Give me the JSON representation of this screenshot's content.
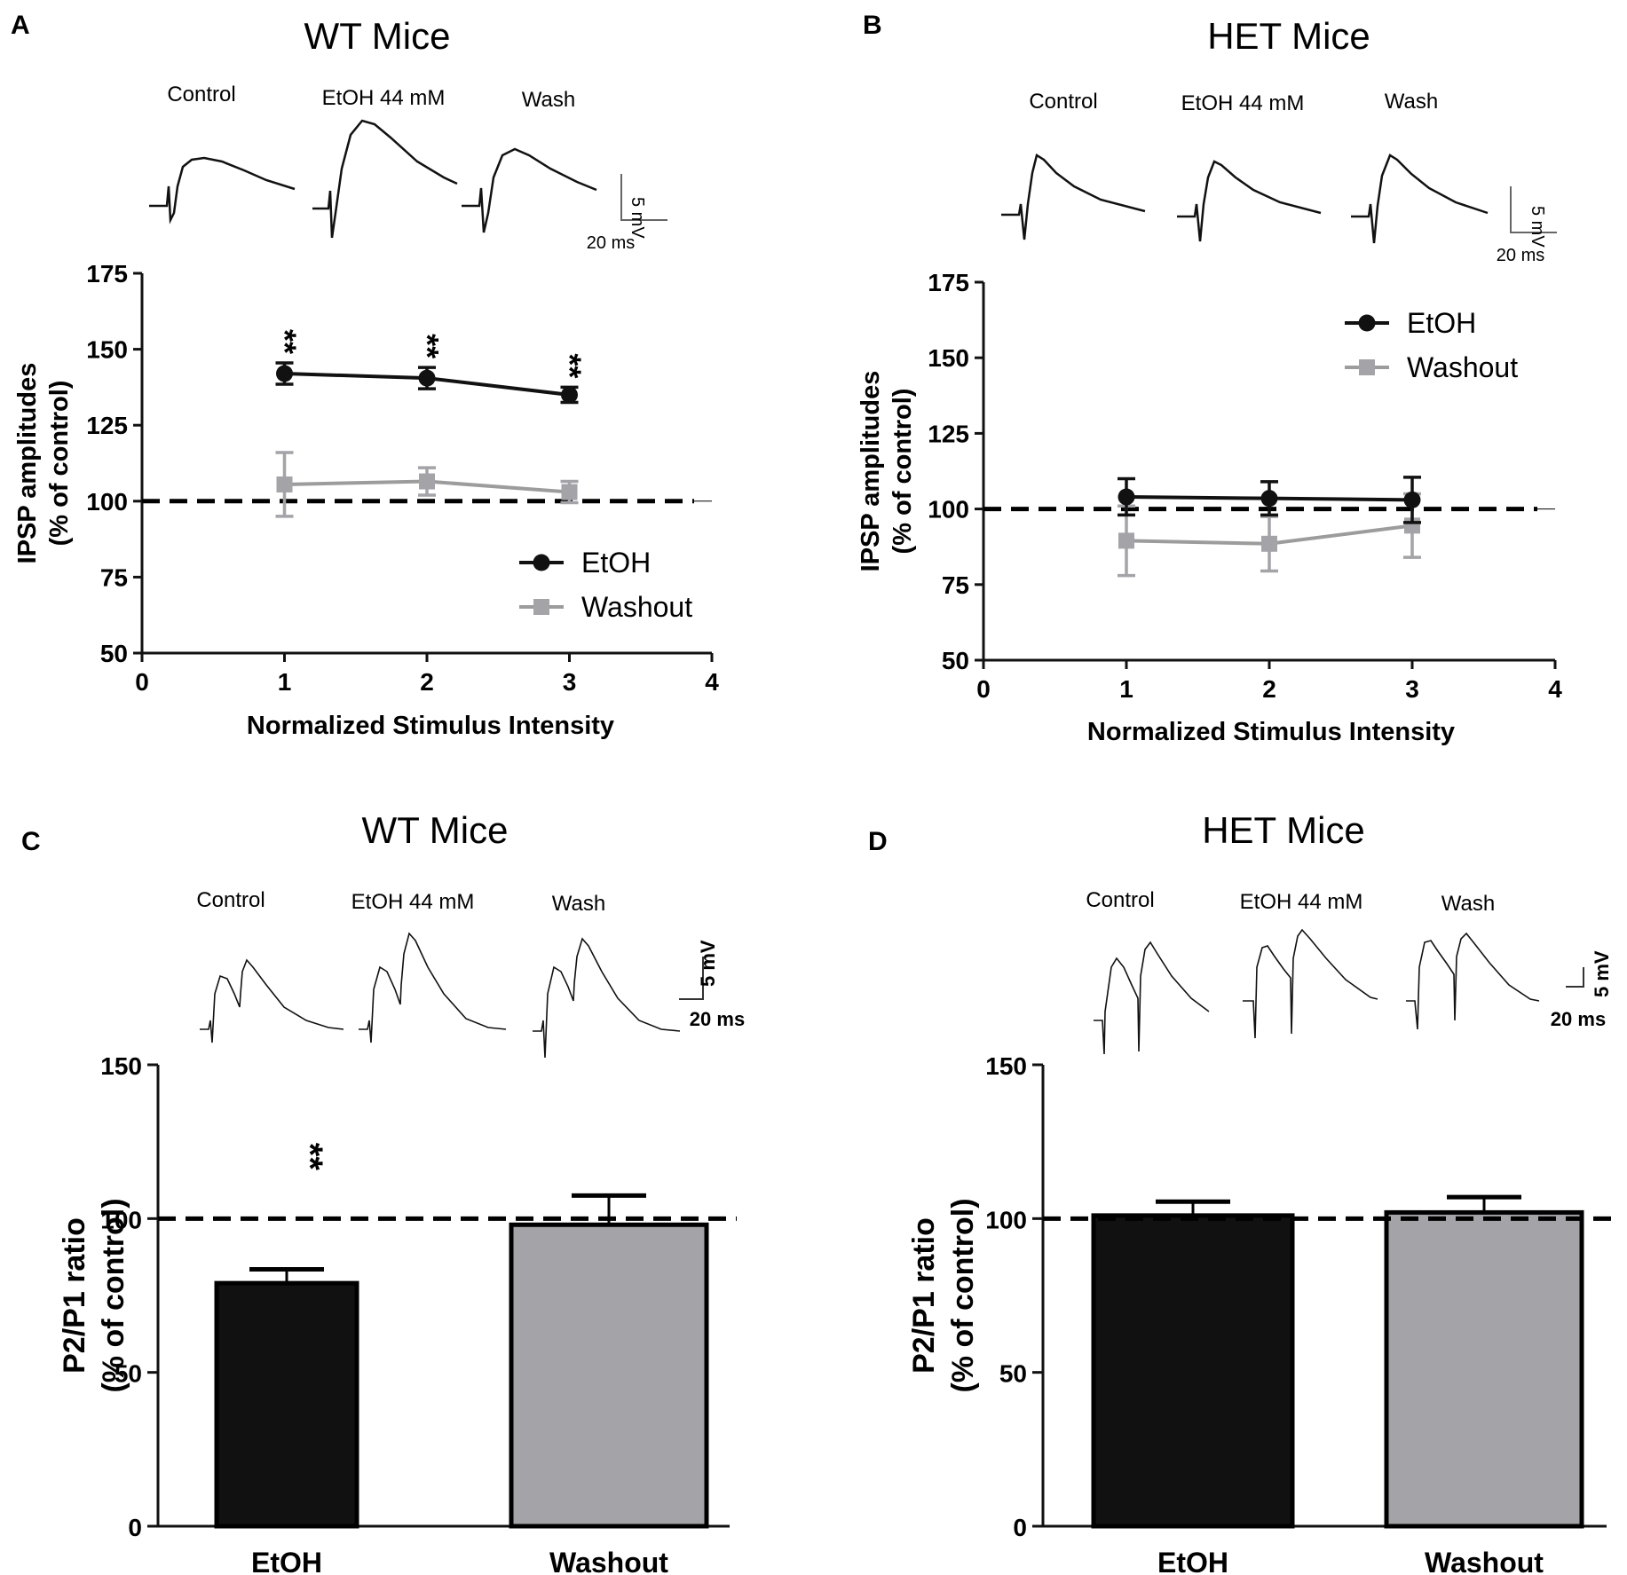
{
  "colors": {
    "etoh": "#111111",
    "washout": "#a3a3a8",
    "washout_line": "#9c9c9c",
    "axis": "#111111"
  },
  "panels": {
    "A": {
      "letter": "A",
      "title": "WT Mice",
      "traces": [
        "Control",
        "EtOH 44 mM",
        "Wash"
      ],
      "scale_v": "5 mV",
      "scale_t": "20 ms"
    },
    "B": {
      "letter": "B",
      "title": "HET Mice",
      "traces": [
        "Control",
        "EtOH 44 mM",
        "Wash"
      ],
      "scale_v": "5 mV",
      "scale_t": "20 ms"
    },
    "C": {
      "letter": "C",
      "title": "WT Mice",
      "traces": [
        "Control",
        "EtOH 44 mM",
        "Wash"
      ],
      "scale_v": "5 mV",
      "scale_t": "20 ms"
    },
    "D": {
      "letter": "D",
      "title": "HET Mice",
      "traces": [
        "Control",
        "EtOH 44 mM",
        "Wash"
      ],
      "scale_v": "5 mV",
      "scale_t": "20 ms"
    }
  },
  "chart_data": [
    {
      "panel": "A",
      "type": "line",
      "title": "WT Mice",
      "xlabel": "Normalized Stimulus Intensity",
      "ylabel": [
        "IPSP amplitudes",
        "(% of control)"
      ],
      "xlim": [
        0,
        4
      ],
      "ylim": [
        50,
        175
      ],
      "xticks": [
        0,
        1,
        2,
        3,
        4
      ],
      "yticks": [
        50,
        75,
        100,
        125,
        150,
        175
      ],
      "x": [
        1,
        2,
        3
      ],
      "series": [
        {
          "name": "EtOH",
          "values": [
            142,
            140.5,
            135
          ],
          "errors": [
            3.5,
            3.5,
            2.5
          ]
        },
        {
          "name": "Washout",
          "values": [
            105.5,
            106.5,
            103
          ],
          "errors": [
            10.5,
            4.5,
            3.5
          ]
        }
      ],
      "reference_line": 100,
      "annotations": [
        "**",
        "**",
        "**"
      ],
      "legend": [
        "EtOH",
        "Washout"
      ],
      "legend_position": "bottom-right"
    },
    {
      "panel": "B",
      "type": "line",
      "title": "HET Mice",
      "xlabel": "Normalized Stimulus Intensity",
      "ylabel": [
        "IPSP amplitudes",
        "(% of control)"
      ],
      "xlim": [
        0,
        4
      ],
      "ylim": [
        50,
        175
      ],
      "xticks": [
        0,
        1,
        2,
        3,
        4
      ],
      "yticks": [
        50,
        75,
        100,
        125,
        150,
        175
      ],
      "x": [
        1,
        2,
        3
      ],
      "series": [
        {
          "name": "EtOH",
          "values": [
            104,
            103.5,
            103
          ],
          "errors": [
            6,
            5.5,
            7.5
          ]
        },
        {
          "name": "Washout",
          "values": [
            89.5,
            88.5,
            94.5
          ],
          "errors": [
            11.5,
            9,
            10.5
          ]
        }
      ],
      "reference_line": 100,
      "legend": [
        "EtOH",
        "Washout"
      ],
      "legend_position": "top-right"
    },
    {
      "panel": "C",
      "type": "bar",
      "title": "WT Mice",
      "ylabel": [
        "P2/P1 ratio",
        "(% of control)"
      ],
      "ylim": [
        0,
        150
      ],
      "yticks": [
        0,
        50,
        100,
        150
      ],
      "categories": [
        "EtOH",
        "Washout"
      ],
      "values": [
        79,
        98
      ],
      "errors": [
        4.5,
        9.5
      ],
      "reference_line": 100,
      "annotations": [
        "**",
        ""
      ]
    },
    {
      "panel": "D",
      "type": "bar",
      "title": "HET Mice",
      "ylabel": [
        "P2/P1 ratio",
        "(% of control)"
      ],
      "ylim": [
        0,
        150
      ],
      "yticks": [
        0,
        50,
        100,
        150
      ],
      "categories": [
        "EtOH",
        "Washout"
      ],
      "values": [
        101,
        102
      ],
      "errors": [
        4.5,
        5
      ],
      "reference_line": 100
    }
  ]
}
